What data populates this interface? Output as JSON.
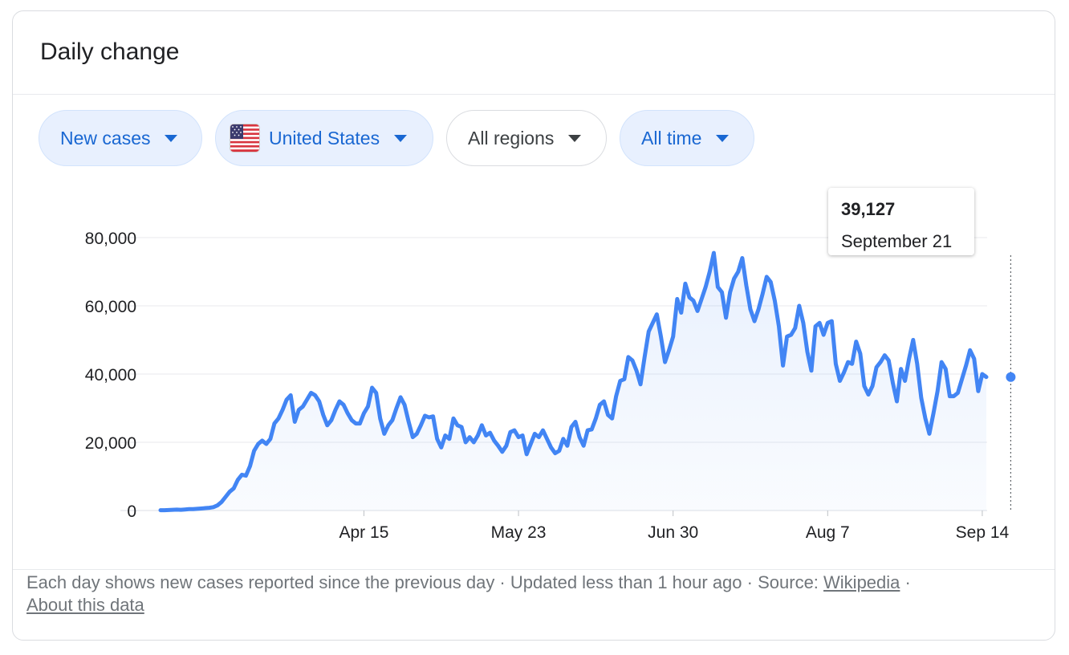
{
  "card": {
    "title": "Daily change"
  },
  "filters": [
    {
      "label": "New cases",
      "style": "blue",
      "icon": ""
    },
    {
      "label": "United States",
      "style": "blue",
      "icon": "us-flag-icon"
    },
    {
      "label": "All regions",
      "style": "plain",
      "icon": ""
    },
    {
      "label": "All time",
      "style": "blue",
      "icon": ""
    }
  ],
  "tooltip": {
    "value": "39,127",
    "date": "September 21"
  },
  "footer": {
    "text": "Each day shows new cases reported since the previous day · Updated less than 1 hour ago",
    "sep": " · ",
    "source_label": "Source: ",
    "source_link": "Wikipedia",
    "about_link": "About this data"
  },
  "chart_data": {
    "type": "area",
    "title": "",
    "xlabel": "",
    "ylabel": "",
    "ylim": [
      0,
      80000
    ],
    "y_ticks": [
      0,
      20000,
      40000,
      60000,
      80000
    ],
    "y_tick_labels": [
      "0",
      "20,000",
      "40,000",
      "60,000",
      "80,000"
    ],
    "x_ticks": [
      "2020-04-15",
      "2020-05-23",
      "2020-06-30",
      "2020-08-07",
      "2020-09-14"
    ],
    "x_tick_labels": [
      "Apr 15",
      "May 23",
      "Jun 30",
      "Aug 7",
      "Sep 14"
    ],
    "grid": true,
    "colors": {
      "line": "#4285f4",
      "fill": "#4285f4",
      "grid": "#e8eaed"
    },
    "highlight": {
      "date": "2020-09-21",
      "value": 39127
    },
    "series": [
      {
        "name": "",
        "start_date": "2020-02-25",
        "values": [
          100,
          100,
          150,
          200,
          250,
          200,
          300,
          400,
          400,
          500,
          600,
          700,
          800,
          1000,
          1500,
          2500,
          4000,
          5500,
          6500,
          9000,
          10500,
          10200,
          13000,
          17500,
          19500,
          20500,
          19500,
          21000,
          25500,
          27000,
          29500,
          32500,
          33800,
          26000,
          29500,
          30500,
          32500,
          34500,
          33800,
          32000,
          28000,
          25000,
          26500,
          29500,
          32000,
          31000,
          28500,
          26500,
          25500,
          25500,
          28500,
          30500,
          36000,
          34500,
          27000,
          22500,
          25000,
          26500,
          30000,
          33200,
          31000,
          26000,
          21500,
          22500,
          25000,
          27800,
          27300,
          27600,
          21000,
          18500,
          22000,
          21000,
          27000,
          25000,
          24500,
          20000,
          21500,
          20000,
          22000,
          25000,
          22000,
          22800,
          20500,
          19000,
          17200,
          19000,
          23000,
          23500,
          21500,
          22000,
          16500,
          19500,
          22500,
          21500,
          23500,
          21000,
          18500,
          16800,
          17500,
          21000,
          19000,
          24500,
          26000,
          21500,
          19000,
          23500,
          23800,
          27000,
          31000,
          32000,
          28000,
          27000,
          33500,
          38000,
          38500,
          45000,
          44000,
          41000,
          37000,
          45000,
          52500,
          55000,
          57500,
          51000,
          43500,
          47000,
          51000,
          62000,
          58000,
          66500,
          62500,
          61500,
          58500,
          62000,
          65500,
          70000,
          75500,
          65500,
          64000,
          56500,
          64000,
          68000,
          70000,
          74000,
          66000,
          59000,
          55500,
          59000,
          63500,
          68500,
          67000,
          61500,
          54000,
          42500,
          51000,
          51500,
          53500,
          60000,
          55000,
          46500,
          41000,
          54000,
          55000,
          51500,
          55000,
          55500,
          43000,
          38000,
          40500,
          43500,
          43000,
          49500,
          46000,
          36500,
          34000,
          36500,
          42000,
          43500,
          45500,
          44000,
          37500,
          32000,
          41500,
          38000,
          44500,
          50000,
          43000,
          33000,
          27000,
          22500,
          28500,
          35000,
          43500,
          41500,
          33500,
          33500,
          34500,
          38500,
          42500,
          47000,
          44500,
          35000,
          40000,
          39127
        ]
      }
    ]
  }
}
